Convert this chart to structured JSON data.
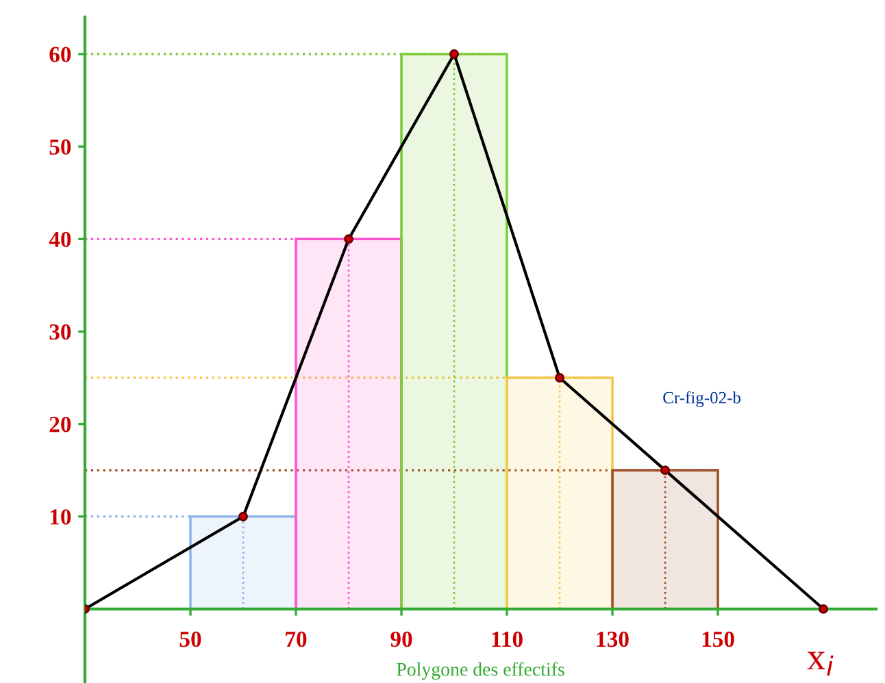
{
  "chart_data": {
    "type": "histogram",
    "title": "Polygone des effectifs",
    "xlabel": "x$_{i}$",
    "bins": [
      50,
      70,
      90,
      110,
      130,
      150
    ],
    "values": [
      10,
      40,
      60,
      25,
      15
    ],
    "colors": [
      "#8fb8e8",
      "#ff55cc",
      "#7dcc3a",
      "#f5c84c",
      "#a0522d"
    ],
    "series": [
      {
        "type": "line",
        "x": [
          30,
          60,
          80,
          100,
          120,
          140,
          170
        ],
        "values": [
          0,
          10,
          40,
          60,
          25,
          15,
          0
        ],
        "color": "#000000",
        "marker": "circle"
      }
    ],
    "ref_lines": [
      {
        "axis": "y",
        "value": 10,
        "color": "#8fb8e8",
        "line_style": "dotted"
      },
      {
        "axis": "y",
        "value": 40,
        "color": "#ff55cc",
        "line_style": "dotted"
      },
      {
        "axis": "y",
        "value": 60,
        "color": "#7dcc3a",
        "line_style": "dotted"
      },
      {
        "axis": "y",
        "value": 25,
        "color": "#f5c84c",
        "line_style": "dotted"
      },
      {
        "axis": "y",
        "value": 15,
        "color": "#a0522d",
        "line_style": "dotted"
      },
      {
        "axis": "x",
        "value": 60,
        "color": "#8fb8e8",
        "line_style": "dotted"
      },
      {
        "axis": "x",
        "value": 80,
        "color": "#ff55cc",
        "line_style": "dotted"
      },
      {
        "axis": "x",
        "value": 100,
        "color": "#7dcc3a",
        "line_style": "dotted"
      },
      {
        "axis": "x",
        "value": 120,
        "color": "#f5c84c",
        "line_style": "dotted"
      },
      {
        "axis": "x",
        "value": 140,
        "color": "#a0522d",
        "line_style": "dotted"
      }
    ],
    "annotations": [
      "Cr-fig-02-b"
    ],
    "xlim": [
      30,
      180
    ],
    "ylim": [
      -8,
      64
    ],
    "xticks": [
      50,
      70,
      90,
      110,
      130,
      150
    ],
    "yticks": [
      10,
      20,
      30,
      40,
      50,
      60
    ],
    "grid": false,
    "legend": false
  }
}
